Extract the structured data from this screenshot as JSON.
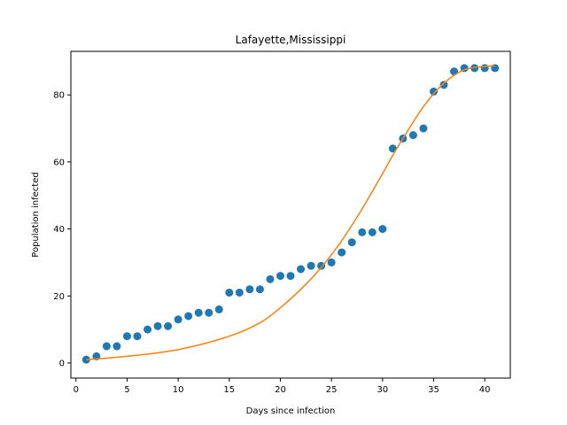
{
  "chart_data": {
    "type": "scatter",
    "title": "Lafayette,Mississippi",
    "xlabel": "Days since infection",
    "ylabel": "Population infected",
    "xlim": [
      -0.5,
      42.5
    ],
    "ylim": [
      -4.5,
      93.0
    ],
    "xticks": [
      0,
      5,
      10,
      15,
      20,
      25,
      30,
      35,
      40
    ],
    "yticks": [
      0,
      20,
      40,
      60,
      80
    ],
    "grid": false,
    "legend": "none",
    "series": [
      {
        "kind": "scatter",
        "color": "#1f77b4",
        "x": [
          1,
          2,
          3,
          4,
          5,
          6,
          7,
          8,
          9,
          10,
          11,
          12,
          13,
          14,
          15,
          16,
          17,
          18,
          19,
          20,
          21,
          22,
          23,
          24,
          25,
          26,
          27,
          28,
          29,
          30,
          31,
          32,
          33,
          34,
          35,
          36,
          37,
          38,
          39,
          40,
          41
        ],
        "y": [
          1,
          2,
          5,
          5,
          8,
          8,
          10,
          11,
          11,
          13,
          14,
          15,
          15,
          16,
          21,
          21,
          22,
          22,
          25,
          26,
          26,
          28,
          29,
          29,
          30,
          33,
          36,
          39,
          39,
          40,
          64,
          67,
          68,
          70,
          81,
          83,
          87,
          88,
          88,
          88,
          88
        ]
      },
      {
        "kind": "line",
        "color": "#ff7f0e",
        "x": [
          1,
          5,
          10,
          15,
          18,
          20,
          22,
          24,
          26,
          28,
          30,
          31,
          32,
          34,
          36,
          38,
          40,
          41
        ],
        "y": [
          1.0,
          2.0,
          4.0,
          8.0,
          12.0,
          16.5,
          22.0,
          28.5,
          36.5,
          46.0,
          56.5,
          62.0,
          67.0,
          76.5,
          83.5,
          87.5,
          88.5,
          88.7
        ]
      }
    ]
  }
}
